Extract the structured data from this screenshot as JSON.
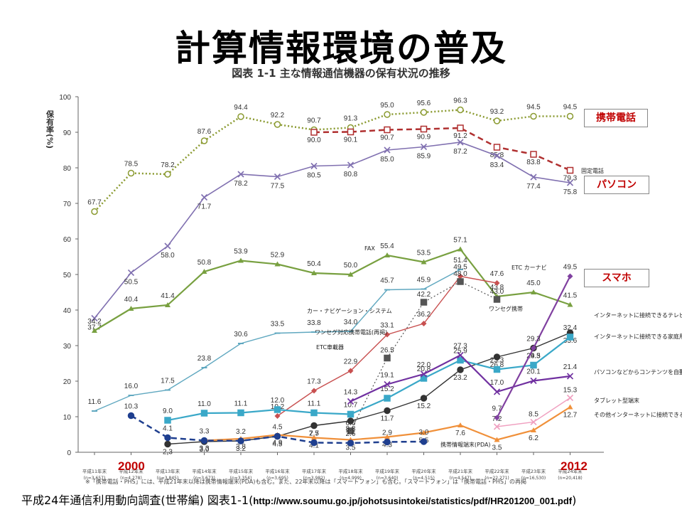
{
  "page_title": "計算情報環境の普及",
  "callouts": {
    "mobile": "携帯電話",
    "pc": "パソコン",
    "smartphone": "スマホ"
  },
  "year_start": "2000",
  "year_end": "2012",
  "source": {
    "text": "平成24年通信利用動向調査(世帯編) 図表1-1(",
    "url": "http://www.soumu.go.jp/johotsusintokei/statistics/pdf/HR201200_001.pdf",
    "close": ")"
  },
  "footnote": "※「携帯電話・PHS」には、平成21年末以降は携帯情報端末(PDA)も含む。また、22年末以降は「スマートフォン」も含む。「スマートフォン」は「携帯電話・PHS」の再掲",
  "colors": {
    "mobile": "#8a9a30",
    "fixed": "#b03030",
    "pc": "#8070b0",
    "fax": "#78a040",
    "car_nav": "#60a8c0",
    "etc": "#c85050",
    "oneseg": "#555555",
    "net_tv": "#333333",
    "game": "#3aa8c8",
    "player": "#7030a0",
    "tablet": "#f0a0c0",
    "net_appl": "#f0903a",
    "pda": "#1f3f8f",
    "smart": "#8040a0"
  },
  "chart_data": {
    "type": "line",
    "title": "図表 1-1 主な情報通信機器の保有状況の推移",
    "ylabel": "保有率(%)",
    "ylim": [
      0,
      100
    ],
    "yticks": [
      0,
      10,
      20,
      30,
      40,
      50,
      60,
      70,
      80,
      90,
      100
    ],
    "grid": false,
    "categories": [
      "平成11年末",
      "平成12年末",
      "平成13年末",
      "平成14年末",
      "平成15年末",
      "平成16年末",
      "平成17年末",
      "平成18年末",
      "平成19年末",
      "平成20年末",
      "平成21年末",
      "平成22年末",
      "平成23年末",
      "平成24年末"
    ],
    "category_n": [
      "(n=3,657)",
      "(n=4,278)",
      "(n=3,845)",
      "(n=3,673)",
      "(n=3,354)",
      "(n=3,695)",
      "(n=3,982)",
      "(n=4,999)",
      "(n=3,640)",
      "(n=4,515)",
      "(n=4,547)",
      "(n=22,271)",
      "(n=16,530)",
      "(n=20,418)"
    ],
    "series": [
      {
        "key": "mobile",
        "name": "携帯電話",
        "marker": "circle",
        "dash": "dot",
        "values": [
          67.7,
          78.5,
          78.2,
          87.6,
          94.4,
          92.2,
          90.7,
          91.3,
          95.0,
          95.6,
          96.3,
          93.2,
          94.5,
          94.5
        ]
      },
      {
        "key": "fixed",
        "name": "固定電話",
        "marker": "square",
        "dash": "dash",
        "values": [
          null,
          null,
          null,
          null,
          null,
          null,
          90.0,
          90.1,
          90.7,
          90.9,
          91.2,
          85.8,
          83.8,
          79.3
        ]
      },
      {
        "key": "pc",
        "name": "パソコン",
        "marker": "cross",
        "dash": "solid",
        "values": [
          37.7,
          50.5,
          58.0,
          71.7,
          78.2,
          77.5,
          80.5,
          80.8,
          85.0,
          85.9,
          87.2,
          83.4,
          77.4,
          75.8
        ]
      },
      {
        "key": "fax",
        "name": "FAX",
        "marker": "triangle",
        "dash": "solid",
        "values": [
          34.2,
          40.4,
          41.4,
          50.8,
          53.9,
          52.9,
          50.4,
          50.0,
          55.4,
          53.5,
          57.1,
          43.8,
          45.0,
          41.5
        ]
      },
      {
        "key": "car_nav",
        "name": "カー・ナビゲーション・システム",
        "marker": "dash",
        "dash": "solid",
        "values": [
          11.6,
          16.0,
          17.5,
          23.8,
          30.6,
          33.5,
          33.8,
          34.0,
          45.7,
          45.9,
          51.4,
          null,
          null,
          null
        ]
      },
      {
        "key": "etc",
        "name": "ETC車載器",
        "marker": "diamond",
        "dash": "solid",
        "values": [
          null,
          null,
          null,
          null,
          null,
          10.2,
          17.3,
          22.9,
          33.1,
          36.2,
          49.5,
          47.6,
          null,
          null
        ]
      },
      {
        "key": "oneseg",
        "name": "ワンセグ対応携帯電話",
        "marker": "square",
        "dash": "dot",
        "values": [
          null,
          null,
          null,
          null,
          null,
          null,
          null,
          6.0,
          26.5,
          42.2,
          48.0,
          43.0,
          null,
          null
        ]
      },
      {
        "key": "net_tv",
        "name": "インターネットに接続できるテレビ",
        "marker": "circle",
        "dash": "solid",
        "values": [
          null,
          null,
          2.3,
          3.0,
          3.2,
          4.5,
          7.5,
          8.8,
          11.7,
          15.2,
          23.2,
          26.8,
          29.3,
          33.6
        ]
      },
      {
        "key": "game",
        "name": "インターネットに接続できる家庭用ゲーム機",
        "marker": "square",
        "dash": "solid",
        "values": [
          null,
          null,
          9.0,
          11.0,
          11.1,
          12.0,
          11.1,
          10.7,
          15.2,
          20.8,
          25.9,
          23.3,
          24.5,
          32.4
        ]
      },
      {
        "key": "player",
        "name": "パソコンなどからコンテンツを自動録音できる携帯プレイヤー",
        "marker": "cross",
        "dash": "solid",
        "values": [
          null,
          null,
          null,
          null,
          null,
          null,
          null,
          14.3,
          19.1,
          22.0,
          27.3,
          17.0,
          20.1,
          21.4
        ]
      },
      {
        "key": "tablet",
        "name": "タブレット型端末",
        "marker": "cross",
        "dash": "solid",
        "values": [
          null,
          null,
          null,
          null,
          null,
          null,
          null,
          null,
          null,
          null,
          null,
          7.2,
          8.5,
          15.3
        ]
      },
      {
        "key": "net_appl",
        "name": "その他インターネットに接続できる家電(情報家電)等",
        "marker": "triangle",
        "dash": "solid",
        "values": [
          null,
          null,
          null,
          3.3,
          3.8,
          4.9,
          4.1,
          3.5,
          4.3,
          5.5,
          7.6,
          3.5,
          6.2,
          12.7
        ]
      },
      {
        "key": "pda",
        "name": "携帯情報端末(PDA)",
        "marker": "circle",
        "dash": "dash",
        "values": [
          null,
          10.3,
          4.1,
          3.3,
          3.2,
          4.5,
          2.7,
          2.6,
          2.9,
          3.0,
          null,
          null,
          null,
          null
        ]
      },
      {
        "key": "smart",
        "name": "スマートフォン",
        "marker": "diamond",
        "dash": "solid",
        "values": [
          null,
          null,
          null,
          null,
          null,
          null,
          null,
          null,
          null,
          null,
          null,
          9.7,
          29.3,
          49.5
        ]
      }
    ],
    "series_labels": [
      "固定電話",
      "FAX",
      "ETC カーナビ",
      "カー・ナビゲーション・システム",
      "ワンセグ対応携帯電話(再掲)",
      "ETC車載器",
      "ワンセグ携帯",
      "インターネットに接続できるテレビ",
      "インターネットに接続できる家庭用ゲーム機",
      "パソコンなどからコンテンツを自動録音できる携帯プレイヤー",
      "タブレット型端末",
      "その他インターネットに接続できる家電(情報家電)等",
      "携帯情報端末(PDA)"
    ]
  }
}
